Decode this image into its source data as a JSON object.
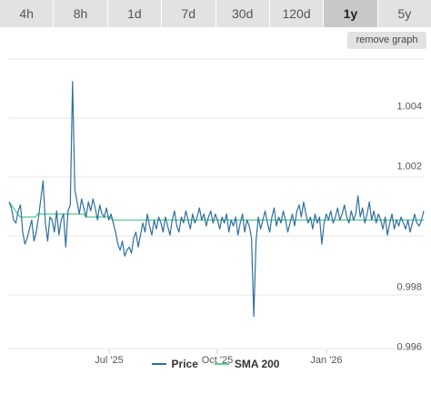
{
  "tabs": [
    {
      "label": "4h",
      "active": false
    },
    {
      "label": "8h",
      "active": false
    },
    {
      "label": "1d",
      "active": false
    },
    {
      "label": "7d",
      "active": false
    },
    {
      "label": "30d",
      "active": false
    },
    {
      "label": "120d",
      "active": false
    },
    {
      "label": "1y",
      "active": true
    },
    {
      "label": "5y",
      "active": false
    }
  ],
  "remove_graph_label": "remove graph",
  "colors": {
    "price": "#2f6f9f",
    "sma": "#5ccf8e",
    "grid": "#e6e6e6",
    "axis_text": "#555555"
  },
  "chart_data": {
    "type": "line",
    "x_ticks": [
      "Jul '25",
      "Oct '25",
      "Jan '26"
    ],
    "y_ticks": [
      "0.996",
      "0.998",
      "1.002",
      "1.004"
    ],
    "ylim": [
      0.9959,
      1.0057
    ],
    "grid": true,
    "legend_position": "bottom",
    "series": [
      {
        "name": "Price",
        "values": [
          1.0008,
          1.0006,
          1.0002,
          1.0001,
          1.0005,
          1.0007,
          0.9998,
          0.9994,
          0.9996,
          0.9999,
          1.0002,
          0.9995,
          0.9998,
          1.0003,
          1.0009,
          1.0015,
          1.0001,
          0.9995,
          1.0003,
          1.0002,
          0.9998,
          1.0005,
          0.9997,
          1.0002,
          1.0004,
          0.9993,
          1.0005,
          1.0007,
          1.0048,
          1.0012,
          1.0008,
          1.0004,
          1.0009,
          1.0006,
          1.0003,
          1.0008,
          1.0005,
          1.0009,
          1.0006,
          1.0002,
          1.0007,
          1.0004,
          1.0003,
          1.0006,
          1.0002,
          1.0004,
          1.0001,
          0.9998,
          0.9994,
          0.9992,
          0.9995,
          0.999,
          0.9992,
          0.9993,
          0.9991,
          0.9996,
          0.9998,
          0.9993,
          0.9997,
          1.0001,
          0.9998,
          1.0004,
          1.0,
          0.9997,
          1.0002,
          0.9999,
          1.0003,
          1.0001,
          0.9998,
          1.0003,
          1.0,
          0.9997,
          1.0002,
          1.0005,
          1.0,
          0.9998,
          1.0003,
          1.0001,
          1.0005,
          1.0002,
          0.9999,
          1.0004,
          1.0001,
          1.0003,
          1.0006,
          1.0002,
          1.0004,
          1.0,
          1.0003,
          1.0005,
          1.0001,
          1.0004,
          1.0002,
          0.9999,
          1.0003,
          1.0001,
          1.0004,
          0.9998,
          1.0002,
          1.0,
          1.0003,
          0.9997,
          1.0001,
          1.0004,
          0.9998,
          1.0002,
          1.0,
          0.9996,
          0.997,
          0.9995,
          1.0003,
          0.9999,
          1.0002,
          1.0005,
          1.0001,
          0.9998,
          1.0003,
          1.0006,
          1.0,
          1.0003,
          1.0001,
          1.0005,
          1.0002,
          0.9998,
          1.0001,
          1.0004,
          1.0,
          1.0005,
          1.0007,
          1.0003,
          1.0008,
          1.0004,
          1.0001,
          1.0003,
          0.9999,
          1.0004,
          1.0001,
          1.0003,
          0.9994,
          1.0001,
          1.0004,
          1.0002,
          1.0005,
          1.0001,
          1.0003,
          1.0006,
          1.0002,
          1.0004,
          1.0007,
          1.0003,
          1.0001,
          1.0005,
          1.0002,
          1.0004,
          1.001,
          1.0003,
          1.0006,
          1.0001,
          1.0004,
          1.0008,
          1.0002,
          1.0005,
          1.0001,
          1.0004,
          1.0002,
          0.9999,
          1.0003,
          0.9997,
          1.0001,
          1.0004,
          0.9999,
          1.0002,
          1.0,
          1.0003,
          1.0001,
          0.9999,
          1.0002,
          0.9998,
          1.0001,
          1.0004,
          1.0001,
          1.0,
          1.0002,
          1.0005
        ]
      },
      {
        "name": "SMA 200",
        "values": [
          1.0008,
          1.0007,
          1.0006,
          1.0005,
          1.0004,
          1.0003,
          1.0003,
          1.0003,
          1.0003,
          1.0003,
          1.0003,
          1.0003,
          1.0003,
          1.0004,
          1.0004,
          1.0004,
          1.0004,
          1.0004,
          1.0004,
          1.0004,
          1.0004,
          1.0004,
          1.0004,
          1.0004,
          1.0004,
          1.0004,
          1.0004,
          1.0004,
          1.0004,
          1.0004,
          1.0004,
          1.0004,
          1.0004,
          1.0004,
          1.0004,
          1.0003,
          1.0003,
          1.0003,
          1.0003,
          1.0003,
          1.0003,
          1.0003,
          1.0003,
          1.0003,
          1.0003,
          1.0003,
          1.0003,
          1.0002,
          1.0002,
          1.0002,
          1.0002,
          1.0002,
          1.0002,
          1.0002,
          1.0002,
          1.0002,
          1.0002,
          1.0002,
          1.0002,
          1.0002,
          1.0002,
          1.0002,
          1.0002,
          1.0002,
          1.0002,
          1.0002,
          1.0002,
          1.0002,
          1.0002,
          1.0002,
          1.0002,
          1.0002,
          1.0002,
          1.0002,
          1.0002,
          1.0002,
          1.0002,
          1.0002,
          1.0002,
          1.0002,
          1.0002,
          1.0002,
          1.0002,
          1.0002,
          1.0002,
          1.0002,
          1.0002,
          1.0002,
          1.0002,
          1.0002,
          1.0002,
          1.0002,
          1.0002,
          1.0002,
          1.0002,
          1.0002,
          1.0002,
          1.0002,
          1.0002,
          1.0002,
          1.0002,
          1.0002,
          1.0002,
          1.0002,
          1.0002,
          1.0002,
          1.0002,
          1.0002,
          1.0002,
          1.0002,
          1.0002,
          1.0002,
          1.0002,
          1.0002,
          1.0002,
          1.0002,
          1.0002,
          1.0002,
          1.0002,
          1.0002,
          1.0002,
          1.0002,
          1.0002,
          1.0002,
          1.0002,
          1.0002,
          1.0002,
          1.0002,
          1.0002,
          1.0002,
          1.0002,
          1.0002,
          1.0002,
          1.0002,
          1.0002,
          1.0002,
          1.0002,
          1.0002,
          1.0002,
          1.0002,
          1.0002,
          1.0002,
          1.0002,
          1.0002,
          1.0002,
          1.0002,
          1.0002,
          1.0002,
          1.0002,
          1.0002,
          1.0002,
          1.0002,
          1.0002,
          1.0002,
          1.0002,
          1.0002,
          1.0002,
          1.0002,
          1.0002,
          1.0002,
          1.0002,
          1.0002,
          1.0002,
          1.0002,
          1.0002,
          1.0002,
          1.0002,
          1.0002,
          1.0002,
          1.0002,
          1.0002,
          1.0002,
          1.0002,
          1.0002,
          1.0002,
          1.0002,
          1.0002,
          1.0002,
          1.0002,
          1.0002,
          1.0002,
          1.0002,
          1.0002,
          1.0002,
          1.0002,
          1.0002,
          1.0002,
          1.0002,
          1.0002,
          1.0002
        ]
      }
    ]
  }
}
